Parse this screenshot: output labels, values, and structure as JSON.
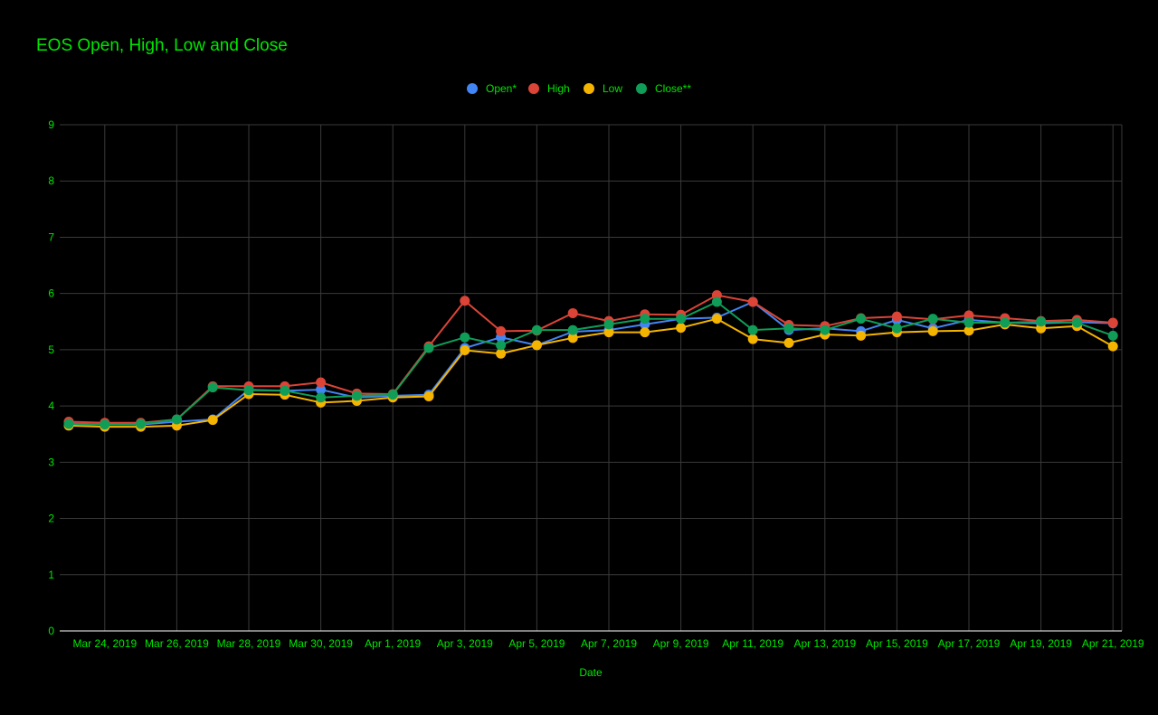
{
  "chart_data": {
    "type": "line",
    "title": "EOS Open, High, Low and Close",
    "xlabel": "Date",
    "ylabel": "",
    "ylim": [
      0,
      9
    ],
    "yticks": [
      "0",
      "1",
      "2",
      "3",
      "4",
      "5",
      "6",
      "7",
      "8",
      "9"
    ],
    "x": [
      "Mar 23, 2019",
      "Mar 24, 2019",
      "Mar 25, 2019",
      "Mar 26, 2019",
      "Mar 27, 2019",
      "Mar 28, 2019",
      "Mar 29, 2019",
      "Mar 30, 2019",
      "Mar 31, 2019",
      "Apr 1, 2019",
      "Apr 2, 2019",
      "Apr 3, 2019",
      "Apr 4, 2019",
      "Apr 5, 2019",
      "Apr 6, 2019",
      "Apr 7, 2019",
      "Apr 8, 2019",
      "Apr 9, 2019",
      "Apr 10, 2019",
      "Apr 11, 2019",
      "Apr 12, 2019",
      "Apr 13, 2019",
      "Apr 14, 2019",
      "Apr 15, 2019",
      "Apr 16, 2019",
      "Apr 17, 2019",
      "Apr 18, 2019",
      "Apr 19, 2019",
      "Apr 20, 2019",
      "Apr 21, 2019"
    ],
    "xtick_labels": [
      "Mar 24, 2019",
      "Mar 26, 2019",
      "Mar 28, 2019",
      "Mar 30, 2019",
      "Apr 1, 2019",
      "Apr 3, 2019",
      "Apr 5, 2019",
      "Apr 7, 2019",
      "Apr 9, 2019",
      "Apr 11, 2019",
      "Apr 13, 2019",
      "Apr 15, 2019",
      "Apr 17, 2019",
      "Apr 19, 2019",
      "Apr 21, 2019"
    ],
    "grid": true,
    "legend_position": "top-center",
    "series": [
      {
        "name": "Open*",
        "color": "#4285f4",
        "values": [
          3.69,
          3.67,
          3.67,
          3.72,
          3.76,
          4.29,
          4.27,
          4.29,
          4.15,
          4.18,
          4.2,
          5.03,
          5.22,
          5.08,
          5.32,
          5.35,
          5.45,
          5.55,
          5.57,
          5.85,
          5.35,
          5.38,
          5.33,
          5.53,
          5.38,
          5.53,
          5.48,
          5.47,
          5.49,
          5.47
        ]
      },
      {
        "name": "High",
        "color": "#db4437",
        "values": [
          3.72,
          3.7,
          3.7,
          3.76,
          4.35,
          4.35,
          4.35,
          4.42,
          4.22,
          4.21,
          5.06,
          5.87,
          5.33,
          5.34,
          5.65,
          5.51,
          5.63,
          5.62,
          5.97,
          5.85,
          5.44,
          5.42,
          5.56,
          5.59,
          5.54,
          5.61,
          5.56,
          5.51,
          5.53,
          5.48
        ]
      },
      {
        "name": "Low",
        "color": "#f4b400",
        "values": [
          3.65,
          3.63,
          3.63,
          3.65,
          3.75,
          4.21,
          4.2,
          4.06,
          4.09,
          4.15,
          4.17,
          4.99,
          4.93,
          5.08,
          5.21,
          5.31,
          5.31,
          5.39,
          5.55,
          5.19,
          5.12,
          5.27,
          5.25,
          5.31,
          5.33,
          5.34,
          5.45,
          5.38,
          5.42,
          5.06
        ]
      },
      {
        "name": "Close**",
        "color": "#0f9d58",
        "values": [
          3.68,
          3.67,
          3.68,
          3.76,
          4.33,
          4.28,
          4.27,
          4.15,
          4.18,
          4.2,
          5.03,
          5.22,
          5.08,
          5.35,
          5.35,
          5.45,
          5.55,
          5.55,
          5.85,
          5.35,
          5.38,
          5.35,
          5.55,
          5.38,
          5.55,
          5.48,
          5.48,
          5.5,
          5.48,
          5.25
        ]
      }
    ]
  },
  "colors": {
    "background": "#000000",
    "text": "#00e700",
    "grid": "#3a3a3a",
    "baseline": "#ffffff"
  }
}
